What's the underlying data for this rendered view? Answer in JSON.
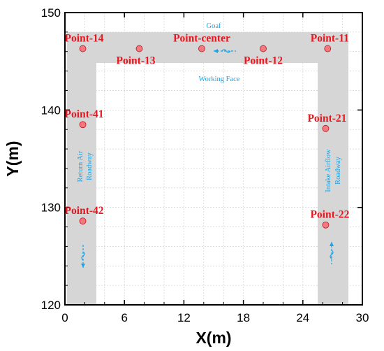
{
  "chart_data": {
    "type": "scatter",
    "xlabel": "X(m)",
    "ylabel": "Y(m)",
    "xlim": [
      0,
      30
    ],
    "ylim": [
      120,
      150
    ],
    "xticks": [
      "0",
      "6",
      "12",
      "18",
      "24",
      "30"
    ],
    "yticks": [
      "120",
      "130",
      "140",
      "150"
    ],
    "grid": true,
    "points": [
      {
        "name": "Point-14",
        "x": 1.8,
        "y": 146.3
      },
      {
        "name": "Point-13",
        "x": 7.5,
        "y": 146.3
      },
      {
        "name": "Point-center",
        "x": 13.8,
        "y": 146.3
      },
      {
        "name": "Point-12",
        "x": 20.0,
        "y": 146.3
      },
      {
        "name": "Point-11",
        "x": 26.5,
        "y": 146.3
      },
      {
        "name": "Point-41",
        "x": 1.8,
        "y": 138.5
      },
      {
        "name": "Point-21",
        "x": 26.3,
        "y": 138.1
      },
      {
        "name": "Point-42",
        "x": 1.8,
        "y": 128.6
      },
      {
        "name": "Point-22",
        "x": 26.3,
        "y": 128.2
      }
    ],
    "annotations": {
      "goaf": "Goaf",
      "working_face": "Working Face",
      "return_air_line1": "Return Air",
      "return_air_line2": "Roadway",
      "intake_line1": "Intake Airflow",
      "intake_line2": "Roadway"
    },
    "colors": {
      "point": "#e8161e",
      "annotation": "#19a4e6",
      "roadway": "#d6d6d6"
    }
  }
}
